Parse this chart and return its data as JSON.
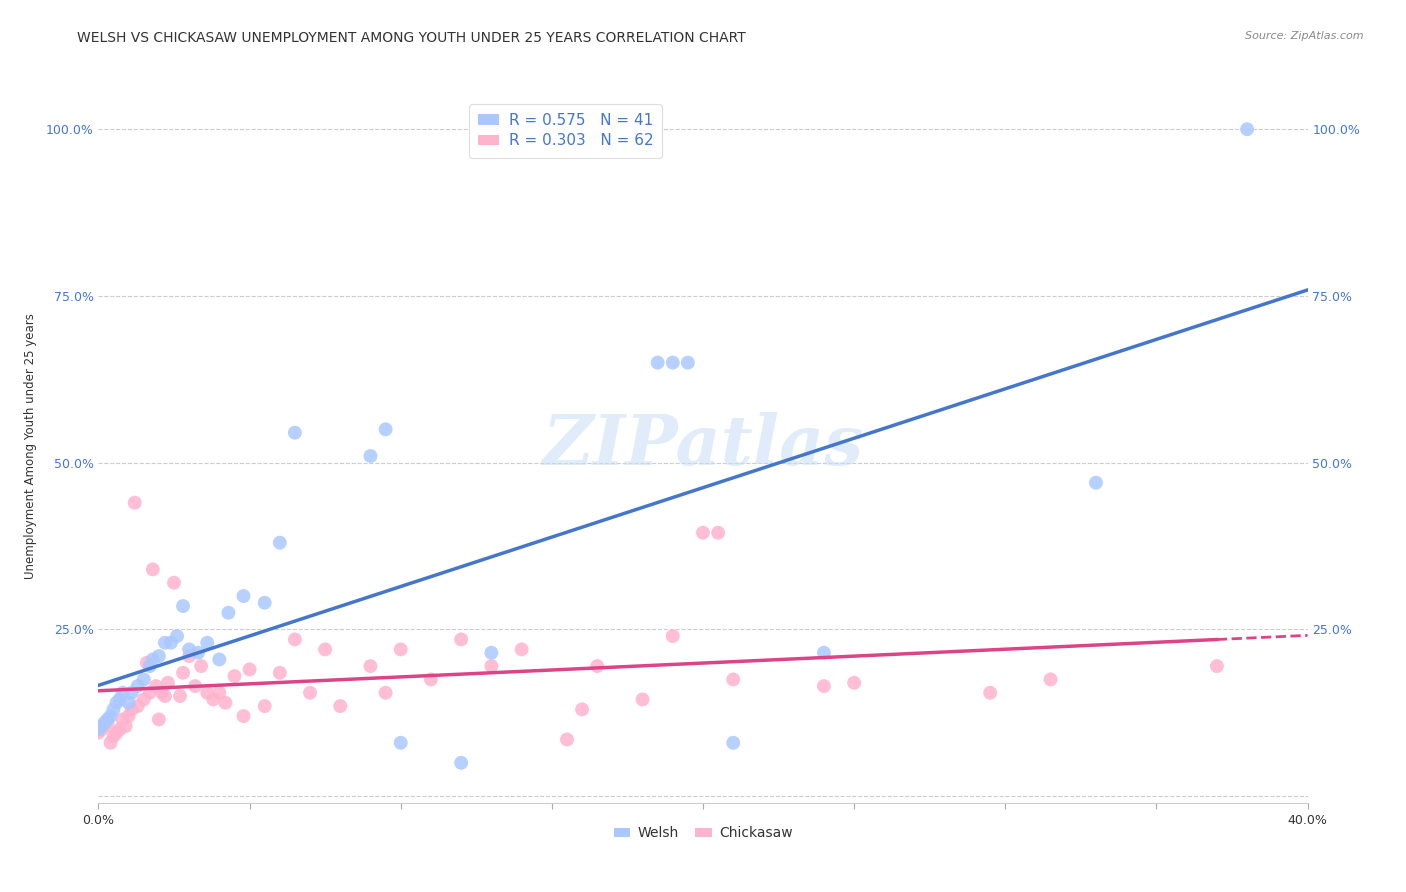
{
  "title": "WELSH VS CHICKASAW UNEMPLOYMENT AMONG YOUTH UNDER 25 YEARS CORRELATION CHART",
  "source": "Source: ZipAtlas.com",
  "ylabel": "Unemployment Among Youth under 25 years",
  "xlim": [
    0.0,
    0.4
  ],
  "ylim": [
    -0.01,
    1.06
  ],
  "xticks": [
    0.0,
    0.05,
    0.1,
    0.15,
    0.2,
    0.25,
    0.3,
    0.35,
    0.4
  ],
  "xticklabels": [
    "0.0%",
    "",
    "",
    "",
    "",
    "",
    "",
    "",
    "40.0%"
  ],
  "ytick_positions": [
    0.0,
    0.25,
    0.5,
    0.75,
    1.0
  ],
  "ytick_labels_left": [
    "",
    "25.0%",
    "50.0%",
    "75.0%",
    "100.0%"
  ],
  "ytick_labels_right": [
    "",
    "25.0%",
    "50.0%",
    "75.0%",
    "100.0%"
  ],
  "grid_color": "#cccccc",
  "background_color": "#ffffff",
  "welsh_color": "#aac8ff",
  "chickasaw_color": "#ffb3cc",
  "welsh_line_color": "#4477cc",
  "chickasaw_line_color": "#dd4488",
  "legend_welsh_label": "Welsh",
  "legend_chickasaw_label": "Chickasaw",
  "welsh_R": 0.575,
  "welsh_N": 41,
  "chickasaw_R": 0.303,
  "chickasaw_N": 62,
  "welsh_x": [
    0.0,
    0.001,
    0.002,
    0.003,
    0.004,
    0.005,
    0.006,
    0.007,
    0.008,
    0.01,
    0.011,
    0.013,
    0.015,
    0.017,
    0.018,
    0.02,
    0.022,
    0.024,
    0.026,
    0.028,
    0.03,
    0.033,
    0.036,
    0.04,
    0.043,
    0.048,
    0.055,
    0.06,
    0.065,
    0.09,
    0.095,
    0.1,
    0.12,
    0.13,
    0.185,
    0.19,
    0.195,
    0.21,
    0.24,
    0.33,
    0.38
  ],
  "welsh_y": [
    0.1,
    0.105,
    0.11,
    0.115,
    0.12,
    0.13,
    0.14,
    0.145,
    0.155,
    0.14,
    0.155,
    0.165,
    0.175,
    0.195,
    0.205,
    0.21,
    0.23,
    0.23,
    0.24,
    0.285,
    0.22,
    0.215,
    0.23,
    0.205,
    0.275,
    0.3,
    0.29,
    0.38,
    0.545,
    0.51,
    0.55,
    0.08,
    0.05,
    0.215,
    0.65,
    0.65,
    0.65,
    0.08,
    0.215,
    0.47,
    1.0
  ],
  "chickasaw_x": [
    0.0,
    0.001,
    0.002,
    0.003,
    0.004,
    0.005,
    0.006,
    0.007,
    0.008,
    0.009,
    0.01,
    0.011,
    0.012,
    0.013,
    0.015,
    0.016,
    0.017,
    0.018,
    0.019,
    0.02,
    0.021,
    0.022,
    0.023,
    0.025,
    0.027,
    0.028,
    0.03,
    0.032,
    0.034,
    0.036,
    0.038,
    0.04,
    0.042,
    0.045,
    0.048,
    0.05,
    0.055,
    0.06,
    0.065,
    0.07,
    0.075,
    0.08,
    0.09,
    0.095,
    0.1,
    0.11,
    0.12,
    0.13,
    0.14,
    0.155,
    0.16,
    0.165,
    0.18,
    0.19,
    0.2,
    0.205,
    0.21,
    0.24,
    0.25,
    0.295,
    0.315,
    0.37
  ],
  "chickasaw_y": [
    0.095,
    0.1,
    0.105,
    0.11,
    0.08,
    0.09,
    0.095,
    0.1,
    0.115,
    0.105,
    0.12,
    0.13,
    0.44,
    0.135,
    0.145,
    0.2,
    0.155,
    0.34,
    0.165,
    0.115,
    0.155,
    0.15,
    0.17,
    0.32,
    0.15,
    0.185,
    0.21,
    0.165,
    0.195,
    0.155,
    0.145,
    0.155,
    0.14,
    0.18,
    0.12,
    0.19,
    0.135,
    0.185,
    0.235,
    0.155,
    0.22,
    0.135,
    0.195,
    0.155,
    0.22,
    0.175,
    0.235,
    0.195,
    0.22,
    0.085,
    0.13,
    0.195,
    0.145,
    0.24,
    0.395,
    0.395,
    0.175,
    0.165,
    0.17,
    0.155,
    0.175,
    0.195
  ],
  "watermark": "ZIPatlas",
  "title_fontsize": 10,
  "axis_label_fontsize": 8.5,
  "tick_fontsize": 9,
  "legend_fontsize": 11,
  "tick_color_blue": "#4477cc",
  "tick_color_black": "#333333"
}
